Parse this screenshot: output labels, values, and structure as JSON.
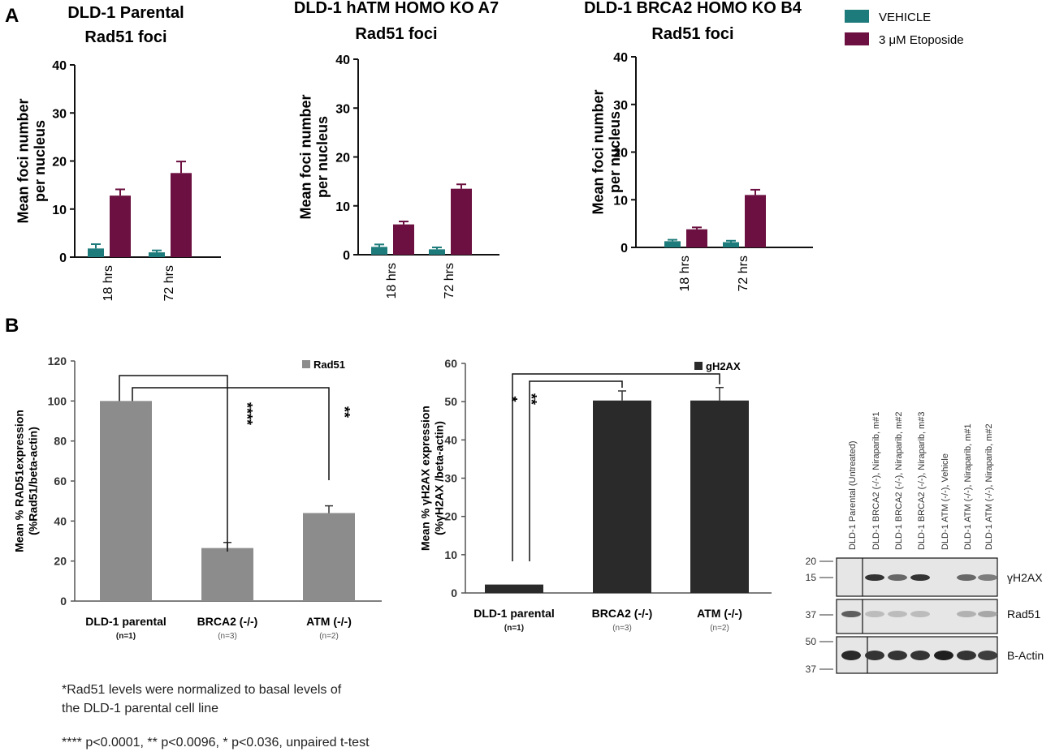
{
  "panel_labels": {
    "a": "A",
    "b": "B"
  },
  "legend_a": {
    "items": [
      {
        "label": "VEHICLE",
        "color": "#1e7b7b"
      },
      {
        "label": "3 μM Etoposide",
        "color": "#6b1040"
      }
    ]
  },
  "chart_data": [
    {
      "id": "a1",
      "type": "bar",
      "title": [
        "DLD-1 Parental",
        "Rad51 foci"
      ],
      "ylabel": [
        "Mean foci number",
        "per nucleus"
      ],
      "categories": [
        "18 hrs",
        "72 hrs"
      ],
      "yticks": [
        "0",
        "10",
        "20",
        "30",
        "40"
      ],
      "ylim": [
        0,
        40
      ],
      "series": [
        {
          "name": "VEHICLE",
          "color": "#1e7b7b",
          "values": [
            1.8,
            1.0
          ],
          "errors": [
            0.9,
            0.4
          ]
        },
        {
          "name": "3 μM Etoposide",
          "color": "#6b1040",
          "values": [
            12.8,
            17.5
          ],
          "errors": [
            1.3,
            2.4
          ]
        }
      ]
    },
    {
      "id": "a2",
      "type": "bar",
      "title": [
        "DLD-1 hATM HOMO KO A7",
        "Rad51 foci"
      ],
      "ylabel": [
        "Mean foci number",
        "per nucleus"
      ],
      "categories": [
        "18 hrs",
        "72 hrs"
      ],
      "yticks": [
        "0",
        "10",
        "20",
        "30",
        "40"
      ],
      "ylim": [
        0,
        40
      ],
      "series": [
        {
          "name": "VEHICLE",
          "color": "#1e7b7b",
          "values": [
            1.6,
            1.1
          ],
          "errors": [
            0.5,
            0.4
          ]
        },
        {
          "name": "3 μM Etoposide",
          "color": "#6b1040",
          "values": [
            6.2,
            13.5
          ],
          "errors": [
            0.6,
            0.9
          ]
        }
      ]
    },
    {
      "id": "a3",
      "type": "bar",
      "title": [
        "DLD-1 BRCA2 HOMO KO B4",
        "Rad51 foci"
      ],
      "ylabel": [
        "Mean foci number",
        "per nucleus"
      ],
      "categories": [
        "18 hrs",
        "72 hrs"
      ],
      "yticks": [
        "0",
        "10",
        "20",
        "30",
        "40"
      ],
      "ylim": [
        0,
        40
      ],
      "series": [
        {
          "name": "VEHICLE",
          "color": "#1e7b7b",
          "values": [
            1.3,
            1.1
          ],
          "errors": [
            0.3,
            0.3
          ]
        },
        {
          "name": "3 μM Etoposide",
          "color": "#6b1040",
          "values": [
            3.8,
            11.0
          ],
          "errors": [
            0.4,
            1.1
          ]
        }
      ]
    },
    {
      "id": "b1",
      "type": "bar",
      "ylabel": [
        "Mean % RAD51expression",
        "(%Rad51/beta-actin)"
      ],
      "legend": "Rad51",
      "color": "#8c8c8c",
      "categories": [
        "DLD-1 parental",
        "BRCA2 (-/-)",
        "ATM (-/-)"
      ],
      "n_labels": [
        "(n=1)",
        "(n=3)",
        "(n=2)"
      ],
      "values": [
        100,
        26.5,
        44
      ],
      "errors": [
        0,
        2.8,
        3.6
      ],
      "yticks": [
        "0",
        "20",
        "40",
        "60",
        "80",
        "100",
        "120"
      ],
      "ylim": [
        0,
        120
      ],
      "significance": [
        "****",
        "**"
      ]
    },
    {
      "id": "b2",
      "type": "bar",
      "ylabel": [
        "Mean % γH2AX expression",
        "(%γH2AX /beta-actin)"
      ],
      "legend": "gH2AX",
      "color": "#2a2a2a",
      "categories": [
        "DLD-1 parental",
        "BRCA2 (-/-)",
        "ATM (-/-)"
      ],
      "n_labels": [
        "(n=1)",
        "(n=3)",
        "(n=2)"
      ],
      "values": [
        2.2,
        50.3,
        50.3
      ],
      "errors": [
        0,
        2.5,
        3.4
      ],
      "yticks": [
        "0",
        "10",
        "20",
        "30",
        "40",
        "50",
        "60"
      ],
      "ylim": [
        0,
        60
      ],
      "significance": [
        "*",
        "**"
      ]
    }
  ],
  "blot": {
    "lanes": [
      "DLD-1 Parental (Untreated)",
      "DLD-1 BRCA2 (-/-), Niraparib, m#1",
      "DLD-1 BRCA2 (-/-), Niraparib, m#2",
      "DLD-1 BRCA2 (-/-), Niraparib, m#3",
      "DLD-1 ATM (-/-), Vehicle",
      "DLD-1 ATM (-/-), Niraparib, m#1",
      "DLD-1 ATM (-/-), Niraparib, m#2"
    ],
    "rows": [
      {
        "label": "γH2AX",
        "markers": [
          "20",
          "15"
        ],
        "intensity": [
          0,
          0.85,
          0.6,
          0.85,
          0,
          0.6,
          0.5
        ]
      },
      {
        "label": "Rad51",
        "markers": [
          "37"
        ],
        "intensity": [
          0.65,
          0.2,
          0.2,
          0.2,
          0,
          0.25,
          0.3
        ]
      },
      {
        "label": "B-Actin",
        "markers": [
          "50",
          "37"
        ],
        "intensity": [
          0.9,
          0.85,
          0.85,
          0.85,
          0.95,
          0.85,
          0.8
        ]
      }
    ]
  },
  "notes": {
    "normalization": [
      "*Rad51 levels were normalized  to basal levels of",
      "the DLD-1 parental cell line"
    ],
    "stats": "**** p<0.0001, ** p<0.0096, * p<0.036, unpaired t-test"
  }
}
